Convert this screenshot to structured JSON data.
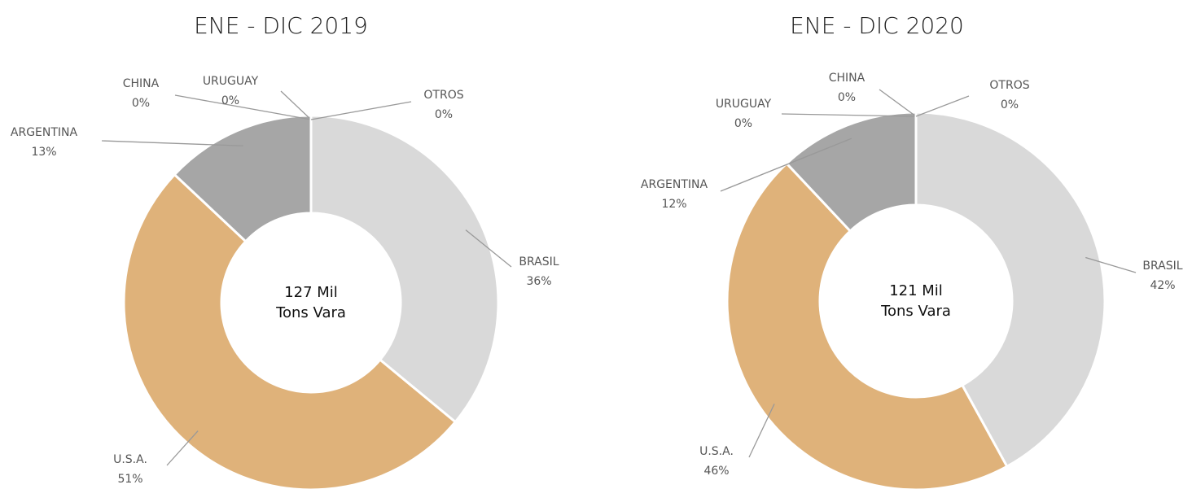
{
  "chart_data": [
    {
      "type": "donut",
      "title": "ENE - DIC 2019",
      "center_label": [
        "127 Mil",
        "Tons Vara"
      ],
      "categories": [
        "BRASIL",
        "U.S.A.",
        "ARGENTINA",
        "CHINA",
        "URUGUAY",
        "OTROS"
      ],
      "values": [
        36,
        51,
        13,
        0,
        0,
        0
      ],
      "value_labels": [
        "36%",
        "51%",
        "13%",
        "0%",
        "0%",
        "0%"
      ],
      "colors": [
        "#d9d9d9",
        "#dfb27a",
        "#a6a6a6",
        "#8c8c8c",
        "#bfbfbf",
        "#e6e6e6"
      ]
    },
    {
      "type": "donut",
      "title": "ENE - DIC 2020",
      "center_label": [
        "121 Mil",
        "Tons Vara"
      ],
      "categories": [
        "BRASIL",
        "U.S.A.",
        "ARGENTINA",
        "URUGUAY",
        "CHINA",
        "OTROS"
      ],
      "values": [
        42,
        46,
        12,
        0,
        0,
        0
      ],
      "value_labels": [
        "42%",
        "46%",
        "12%",
        "0%",
        "0%",
        "0%"
      ],
      "colors": [
        "#d9d9d9",
        "#dfb27a",
        "#a6a6a6",
        "#bfbfbf",
        "#8c8c8c",
        "#e6e6e6"
      ]
    }
  ]
}
